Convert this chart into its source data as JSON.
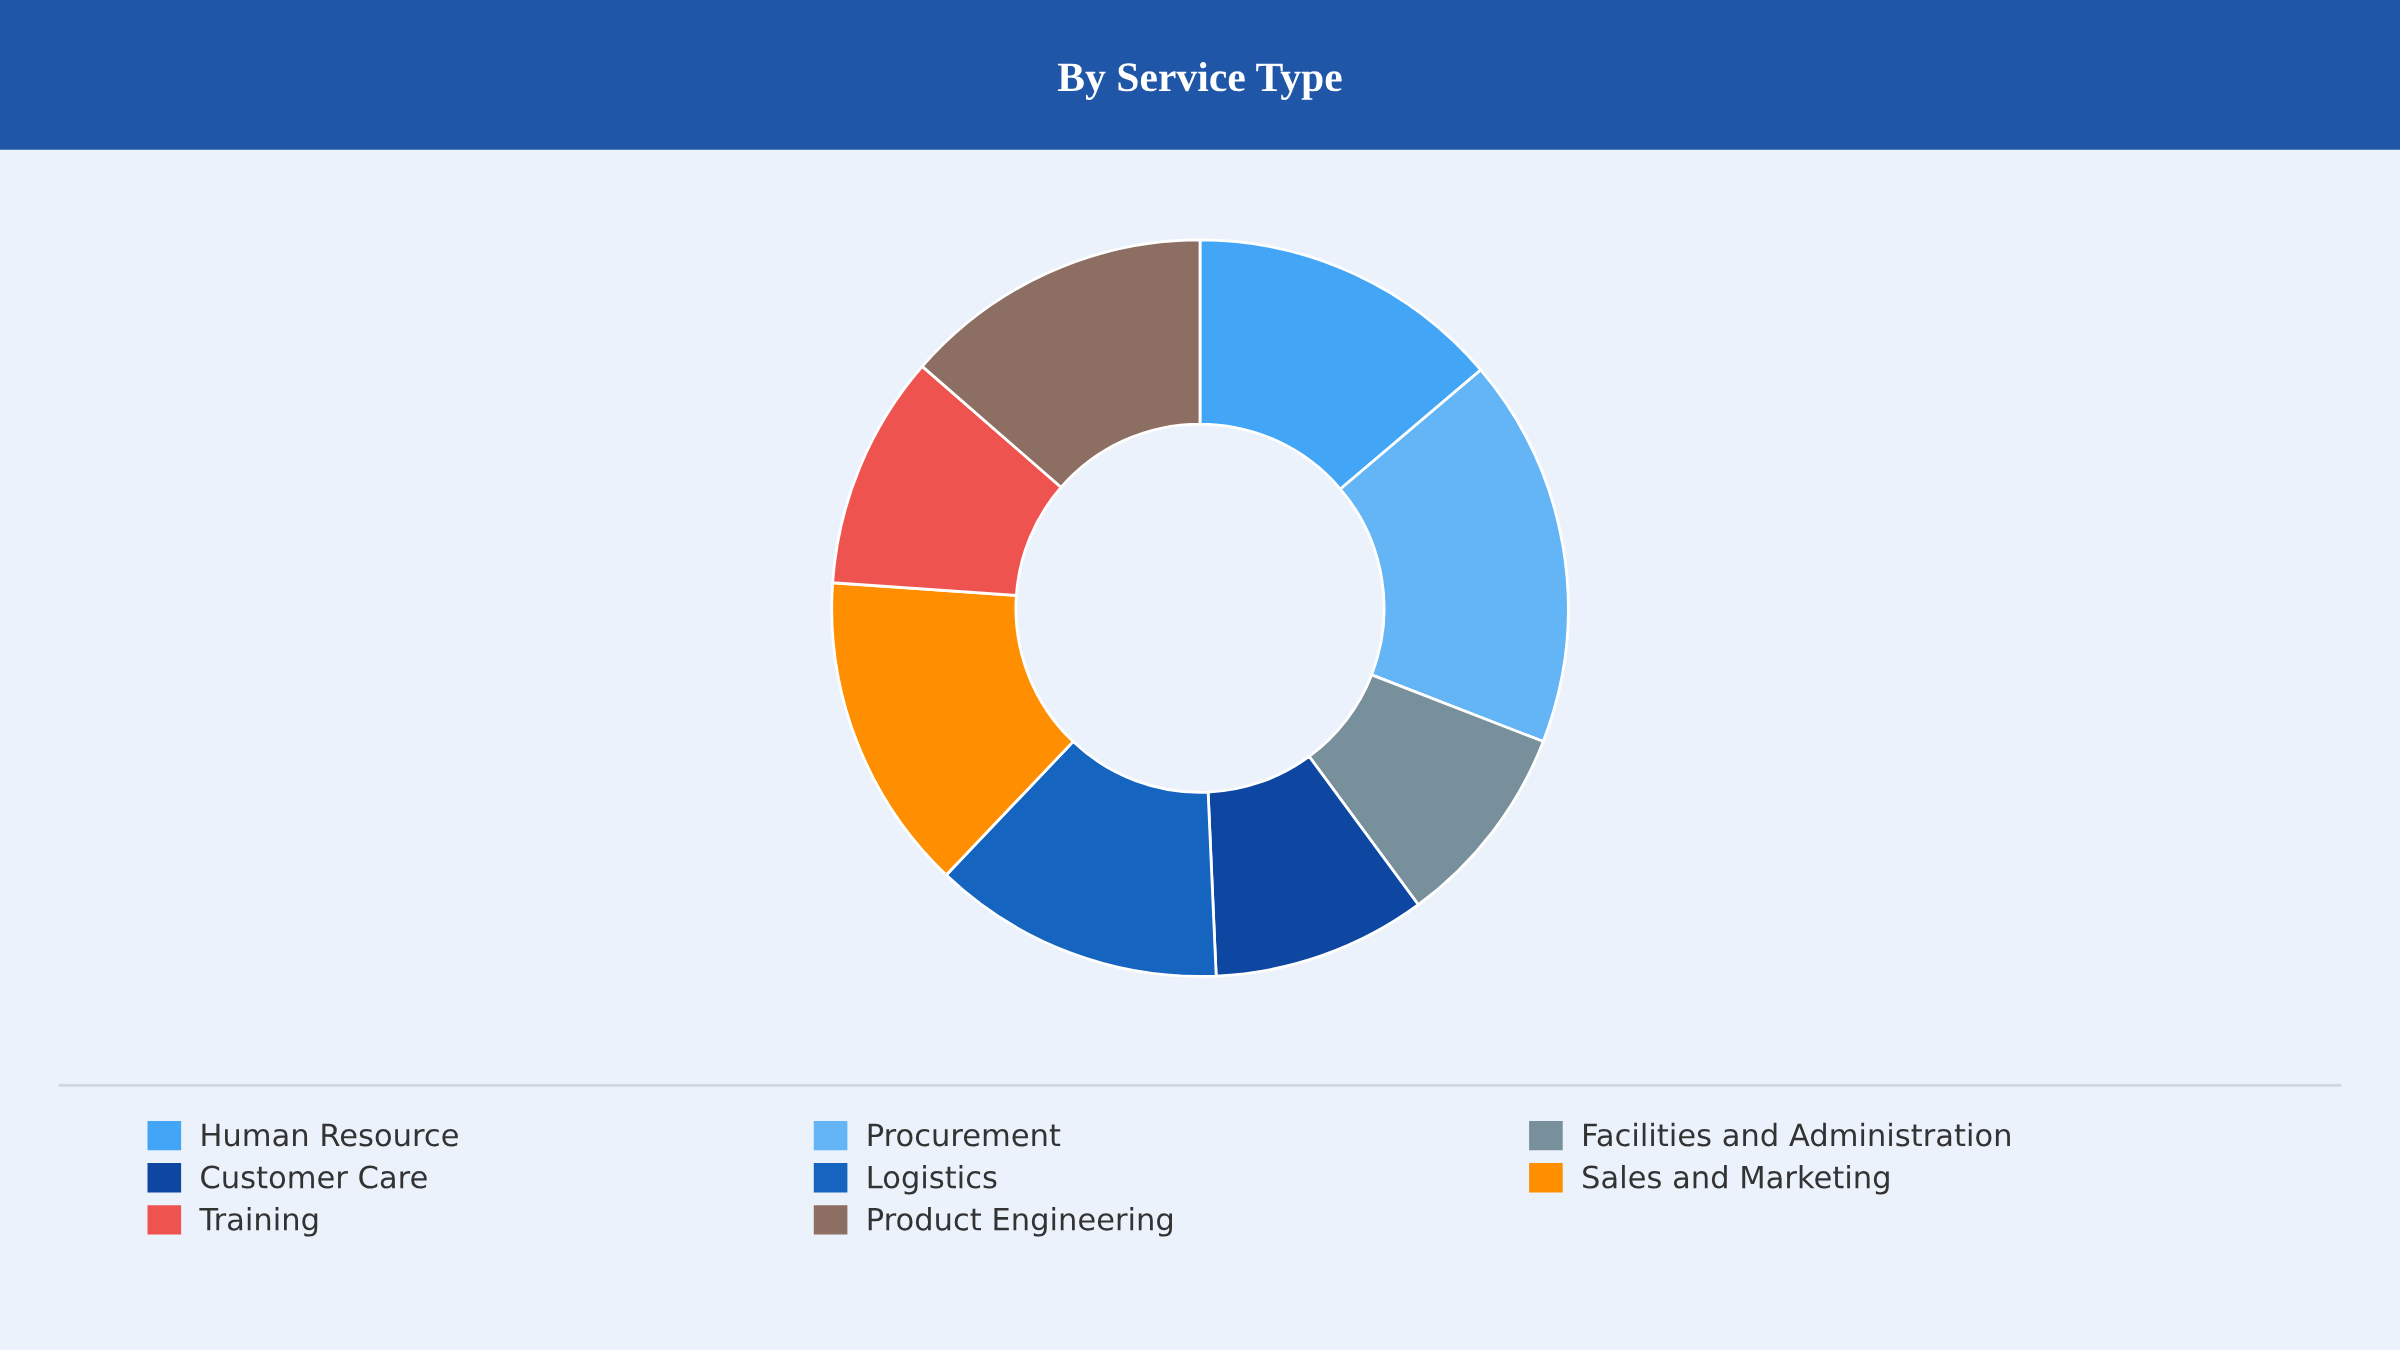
{
  "chart_data": {
    "type": "donut",
    "title": "By Service Type",
    "categories": [
      "Human Resource",
      "Procurement",
      "Facilities and Administration",
      "Customer Care",
      "Logistics",
      "Sales and Marketing",
      "Training",
      "Product Engineering"
    ],
    "values": [
      13.8,
      17.1,
      9.0,
      9.4,
      12.8,
      14.0,
      10.3,
      13.6
    ],
    "colors": [
      "#42a5f5",
      "#64b5f6",
      "#78909c",
      "#0d47a1",
      "#1565c0",
      "#ff8f00",
      "#ef5350",
      "#8d6e63"
    ],
    "legend": "bottom"
  }
}
